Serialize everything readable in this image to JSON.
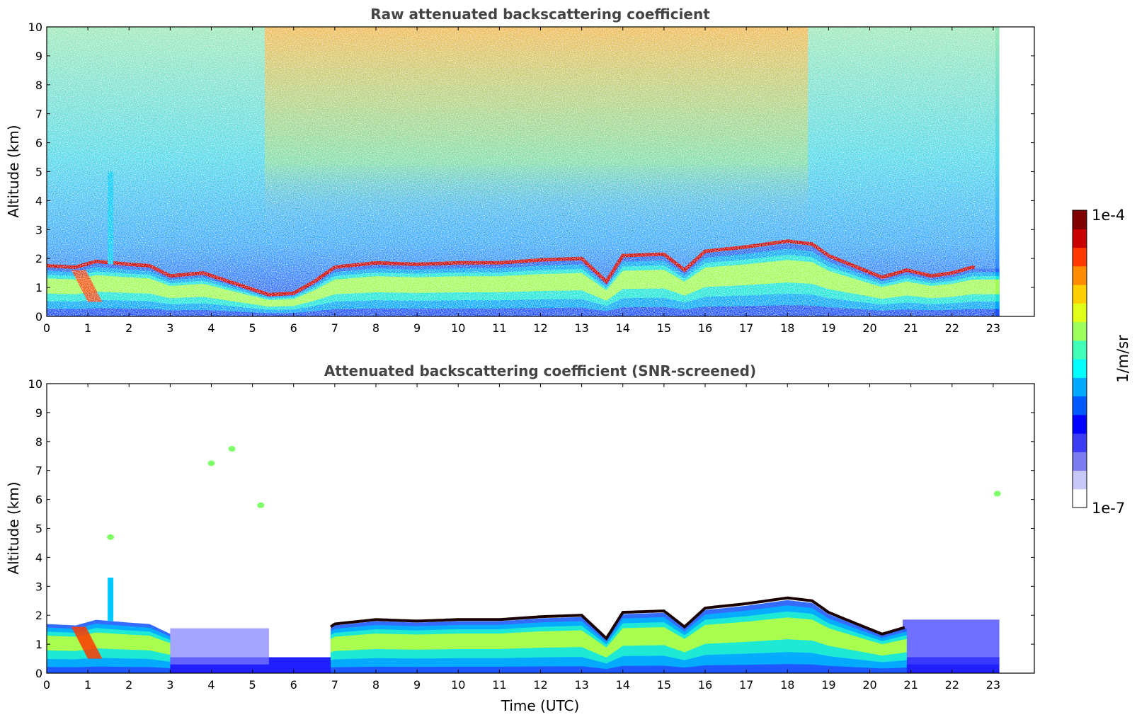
{
  "chart_data": [
    {
      "type": "heatmap",
      "title": "Raw attenuated backscattering coefficient",
      "xlabel": "",
      "ylabel": "Altitude (km)",
      "xlim": [
        0,
        24
      ],
      "ylim": [
        0,
        10
      ],
      "x_ticks": [
        "0",
        "1",
        "2",
        "3",
        "4",
        "5",
        "6",
        "7",
        "8",
        "9",
        "10",
        "11",
        "12",
        "13",
        "14",
        "15",
        "16",
        "17",
        "18",
        "19",
        "20",
        "21",
        "22",
        "23"
      ],
      "y_ticks": [
        "0",
        "1",
        "2",
        "3",
        "4",
        "5",
        "6",
        "7",
        "8",
        "9",
        "10"
      ],
      "data_end_time": 23.15,
      "boundary_layer_top_km": [
        [
          0,
          1.75
        ],
        [
          0.7,
          1.7
        ],
        [
          1.2,
          1.9
        ],
        [
          2.0,
          1.8
        ],
        [
          2.5,
          1.75
        ],
        [
          3.0,
          1.4
        ],
        [
          3.8,
          1.5
        ],
        [
          5.4,
          0.75
        ],
        [
          6.0,
          0.8
        ],
        [
          6.5,
          1.2
        ],
        [
          7.0,
          1.7
        ],
        [
          8.0,
          1.85
        ],
        [
          9.0,
          1.8
        ],
        [
          10.0,
          1.85
        ],
        [
          11.0,
          1.85
        ],
        [
          12.0,
          1.95
        ],
        [
          13.0,
          2.0
        ],
        [
          13.6,
          1.2
        ],
        [
          14.0,
          2.1
        ],
        [
          15.0,
          2.15
        ],
        [
          15.5,
          1.6
        ],
        [
          16.0,
          2.25
        ],
        [
          17.0,
          2.4
        ],
        [
          18.0,
          2.6
        ],
        [
          18.6,
          2.5
        ],
        [
          19.0,
          2.1
        ],
        [
          19.6,
          1.75
        ],
        [
          20.3,
          1.35
        ],
        [
          20.9,
          1.6
        ],
        [
          21.5,
          1.4
        ],
        [
          22.0,
          1.5
        ],
        [
          22.5,
          1.7
        ]
      ],
      "colorbar": {
        "label": "1/m/sr",
        "max_label": "1e-4",
        "min_label": "1e-7",
        "colors": [
          "#ffffff",
          "#c8c8f8",
          "#7c7cf0",
          "#3c3cf4",
          "#0000ff",
          "#0058ff",
          "#00a8ff",
          "#00ffff",
          "#40ffb8",
          "#9cff5c",
          "#e0ff18",
          "#ffd000",
          "#ff8c00",
          "#ff3800",
          "#c80000",
          "#7f0000"
        ]
      }
    },
    {
      "type": "heatmap",
      "title": "Attenuated backscattering coefficient (SNR-screened)",
      "xlabel": "Time (UTC)",
      "ylabel": "Altitude (km)",
      "xlim": [
        0,
        24
      ],
      "ylim": [
        0,
        10
      ],
      "x_ticks": [
        "0",
        "1",
        "2",
        "3",
        "4",
        "5",
        "6",
        "7",
        "8",
        "9",
        "10",
        "11",
        "12",
        "13",
        "14",
        "15",
        "16",
        "17",
        "18",
        "19",
        "20",
        "21",
        "22",
        "23"
      ],
      "y_ticks": [
        "0",
        "1",
        "2",
        "3",
        "4",
        "5",
        "6",
        "7",
        "8",
        "9",
        "10"
      ],
      "data_end_time": 23.15,
      "isolated_features": [
        {
          "time": 1.55,
          "alt_km": 4.7,
          "level": "green"
        },
        {
          "time": 4.5,
          "alt_km": 7.75,
          "level": "green"
        },
        {
          "time": 4.0,
          "alt_km": 7.25,
          "level": "green"
        },
        {
          "time": 5.2,
          "alt_km": 5.8,
          "level": "green"
        },
        {
          "time": 23.1,
          "alt_km": 6.2,
          "level": "green"
        }
      ]
    }
  ]
}
